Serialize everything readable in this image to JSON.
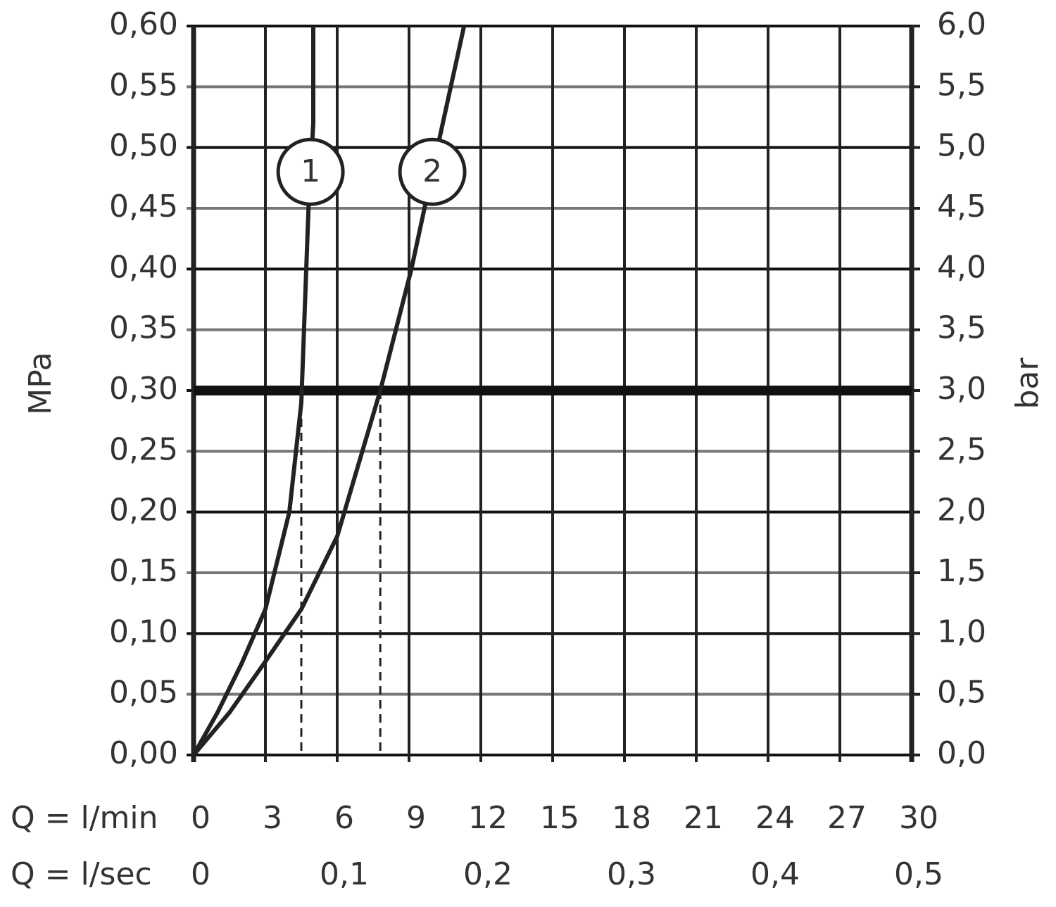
{
  "chart_data": {
    "type": "line",
    "y_label": "MPa",
    "y2_label": "bar",
    "x_label": "Q = l/min",
    "x2_label": "Q = l/sec",
    "xlim": [
      0,
      30
    ],
    "xticks": [
      0,
      3,
      6,
      9,
      12,
      15,
      18,
      21,
      24,
      27,
      30
    ],
    "x2lim": [
      0,
      0.5
    ],
    "x2ticks": [
      0,
      {
        "value": 0.1,
        "label": "0,1"
      },
      {
        "value": 0.2,
        "label": "0,2"
      },
      {
        "value": 0.3,
        "label": "0,3"
      },
      {
        "value": 0.4,
        "label": "0,4"
      },
      {
        "value": 0.5,
        "label": "0,5"
      }
    ],
    "ylim": [
      0,
      0.6
    ],
    "yticks": [
      {
        "value": 0,
        "label": "0,00"
      },
      {
        "value": 0.05,
        "label": "0,05"
      },
      {
        "value": 0.1,
        "label": "0,10"
      },
      {
        "value": 0.15,
        "label": "0,15"
      },
      {
        "value": 0.2,
        "label": "0,20"
      },
      {
        "value": 0.25,
        "label": "0,25"
      },
      {
        "value": 0.3,
        "label": "0,30"
      },
      {
        "value": 0.35,
        "label": "0,35"
      },
      {
        "value": 0.4,
        "label": "0,40"
      },
      {
        "value": 0.45,
        "label": "0,45"
      },
      {
        "value": 0.5,
        "label": "0,50"
      },
      {
        "value": 0.55,
        "label": "0,55"
      },
      {
        "value": 0.6,
        "label": "0,60"
      }
    ],
    "y2lim": [
      0,
      6
    ],
    "y2ticks": [
      {
        "value": 0,
        "label": "0,0"
      },
      {
        "value": 0.5,
        "label": "0,5"
      },
      {
        "value": 1,
        "label": "1,0"
      },
      {
        "value": 1.5,
        "label": "1,5"
      },
      {
        "value": 2,
        "label": "2,0"
      },
      {
        "value": 2.5,
        "label": "2,5"
      },
      {
        "value": 3,
        "label": "3,0"
      },
      {
        "value": 3.5,
        "label": "3,5"
      },
      {
        "value": 4,
        "label": "4,0"
      },
      {
        "value": 4.5,
        "label": "4,5"
      },
      {
        "value": 5,
        "label": "5,0"
      },
      {
        "value": 5.5,
        "label": "5,5"
      },
      {
        "value": 6,
        "label": "6,0"
      }
    ],
    "grid": true,
    "hline": 0.3,
    "vlines": [
      4.5,
      7.8
    ],
    "series": [
      {
        "name": "1",
        "color": "#222222",
        "x": [
          0,
          1,
          2,
          3,
          4,
          4.5,
          4.8,
          5.0,
          5.0
        ],
        "values": [
          0,
          0.035,
          0.075,
          0.12,
          0.2,
          0.29,
          0.45,
          0.52,
          0.6
        ]
      },
      {
        "name": "2",
        "color": "#222222",
        "x": [
          0,
          1.5,
          3,
          4.5,
          6,
          7.8,
          9.1,
          10.3,
          11.3
        ],
        "values": [
          0,
          0.035,
          0.077,
          0.12,
          0.18,
          0.3,
          0.4,
          0.51,
          0.6
        ]
      }
    ]
  }
}
